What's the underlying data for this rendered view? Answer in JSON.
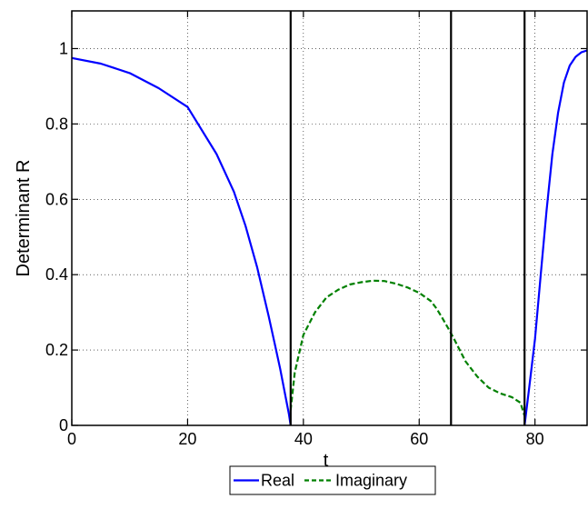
{
  "chart_data": {
    "type": "line",
    "xlabel": "t",
    "ylabel": "Determinant R",
    "xlim": [
      0,
      89
    ],
    "ylim": [
      0,
      1.1
    ],
    "x_ticks": [
      0,
      20,
      40,
      60,
      80
    ],
    "y_ticks": [
      0,
      0.2,
      0.4,
      0.6,
      0.8,
      1
    ],
    "x_tick_labels": [
      "0",
      "20",
      "40",
      "60",
      "80"
    ],
    "y_tick_labels": [
      "0",
      "0.2",
      "0.4",
      "0.6",
      "0.8",
      "1"
    ],
    "grid": true,
    "legend_position": "bottom-center",
    "vertical_lines": [
      37.8,
      65.5,
      78.2
    ],
    "series": [
      {
        "name": "Real",
        "style": "solid",
        "color": "#0000ff",
        "segments": [
          {
            "x": [
              0,
              5,
              10,
              15,
              20,
              25,
              28,
              30,
              32,
              34,
              35,
              36,
              37,
              37.5,
              37.8
            ],
            "y": [
              0.975,
              0.96,
              0.935,
              0.895,
              0.845,
              0.72,
              0.62,
              0.53,
              0.42,
              0.29,
              0.22,
              0.15,
              0.07,
              0.03,
              0.0
            ]
          },
          {
            "x": [
              78.2,
              79,
              80,
              81,
              82,
              83,
              84,
              85,
              86,
              87,
              88,
              89
            ],
            "y": [
              0.0,
              0.1,
              0.23,
              0.4,
              0.57,
              0.72,
              0.83,
              0.91,
              0.955,
              0.978,
              0.99,
              0.995
            ]
          }
        ]
      },
      {
        "name": "Imaginary",
        "style": "dashed",
        "color": "#008000",
        "segments": [
          {
            "x": [
              37.8,
              38.5,
              40,
              42,
              44,
              46,
              48,
              50,
              52,
              54,
              56,
              58,
              60,
              62,
              63,
              64,
              65,
              66,
              68,
              70,
              72,
              74,
              76,
              77.5,
              78.2
            ],
            "y": [
              0.04,
              0.14,
              0.24,
              0.3,
              0.34,
              0.36,
              0.374,
              0.38,
              0.384,
              0.383,
              0.376,
              0.366,
              0.352,
              0.33,
              0.31,
              0.285,
              0.258,
              0.23,
              0.17,
              0.13,
              0.1,
              0.085,
              0.075,
              0.06,
              0.025
            ]
          }
        ]
      }
    ]
  }
}
